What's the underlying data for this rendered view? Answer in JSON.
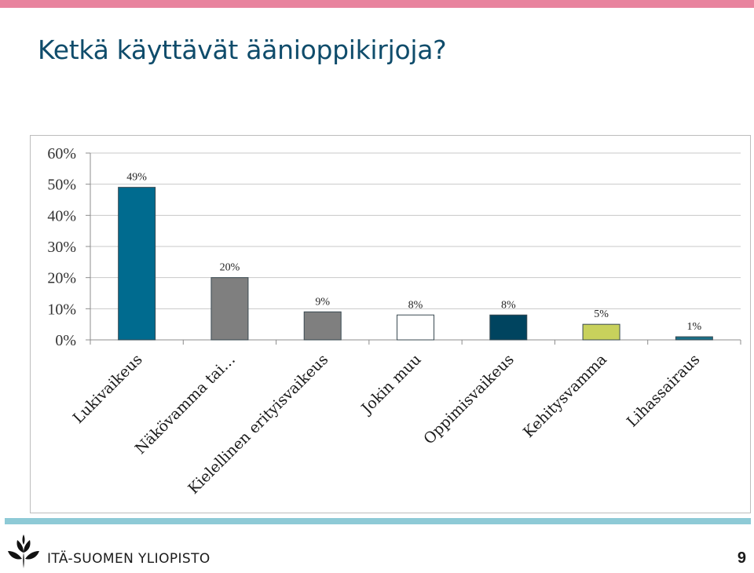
{
  "slide": {
    "title": "Ketkä käyttävät äänioppikirjoja?",
    "university": "ITÄ-SUOMEN YLIOPISTO",
    "page_number": "9"
  },
  "colors": {
    "top_bar": "#e8839e",
    "bottom_bar": "#8ecad6",
    "title": "#0f4c6b"
  },
  "chart_data": {
    "type": "bar",
    "categories": [
      "Lukivaikeus",
      "Näkövamma tai…",
      "Kielellinen erityisvaikeus",
      "Jokin muu",
      "Oppimisvaikeus",
      "Kehitysvamma",
      "Lihassairaus"
    ],
    "values": [
      49,
      20,
      9,
      8,
      8,
      5,
      1
    ],
    "value_labels": [
      "49%",
      "20%",
      "9%",
      "8%",
      "8%",
      "5%",
      "1%"
    ],
    "bar_colors": [
      "#006b8f",
      "#7f7f7f",
      "#7f7f7f",
      "#ffffff",
      "#00445f",
      "#c8d15c",
      "#1a7088"
    ],
    "y_ticks": [
      "0%",
      "10%",
      "20%",
      "30%",
      "40%",
      "50%",
      "60%"
    ],
    "ylim": [
      0,
      60
    ],
    "grid": true,
    "legend": "none"
  }
}
